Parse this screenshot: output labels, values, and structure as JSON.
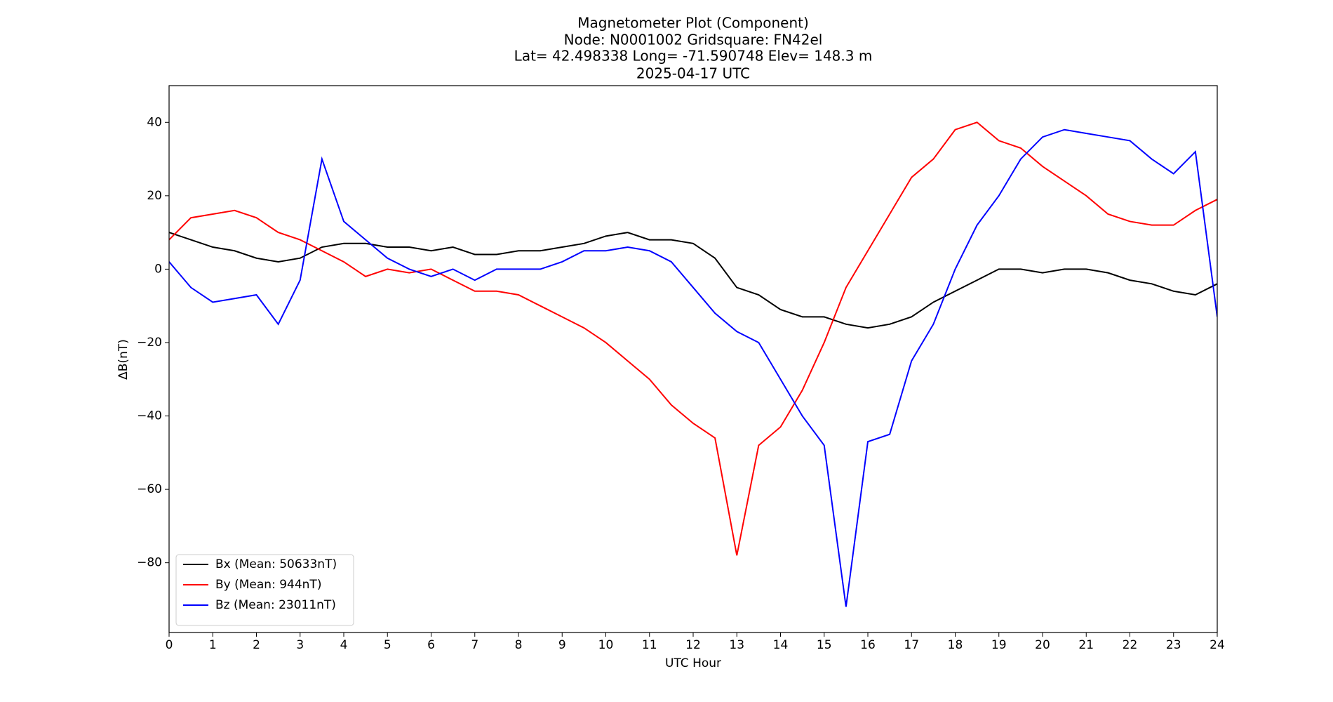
{
  "chart_data": {
    "type": "line",
    "title": [
      "Magnetometer Plot (Component)",
      "Node:  N0001002     Gridsquare:  FN42el",
      "Lat= 42.498338    Long= -71.590748    Elev= 148.3 m",
      "2025-04-17  UTC"
    ],
    "x_label": "UTC Hour",
    "y_label": "ΔB(nT)",
    "x": [
      0,
      0.5,
      1,
      1.5,
      2,
      2.5,
      3,
      3.5,
      4,
      4.5,
      5,
      5.5,
      6,
      6.5,
      7,
      7.5,
      8,
      8.5,
      9,
      9.5,
      10,
      10.5,
      11,
      11.5,
      12,
      12.5,
      13,
      13.5,
      14,
      14.5,
      15,
      15.5,
      16,
      16.5,
      17,
      17.5,
      18,
      18.5,
      19,
      19.5,
      20,
      20.5,
      21,
      21.5,
      22,
      22.5,
      23,
      23.5,
      24
    ],
    "series": [
      {
        "name": "Bx (Mean: 50633nT)",
        "color": "#000000",
        "values": [
          10,
          8,
          6,
          5,
          3,
          2,
          3,
          6,
          7,
          7,
          6,
          6,
          5,
          6,
          4,
          4,
          5,
          5,
          6,
          7,
          9,
          10,
          8,
          8,
          7,
          3,
          -5,
          -7,
          -11,
          -13,
          -13,
          -15,
          -16,
          -15,
          -13,
          -9,
          -6,
          -3,
          0,
          0,
          -1,
          0,
          0,
          -1,
          -3,
          -4,
          -6,
          -7,
          -4
        ]
      },
      {
        "name": "By (Mean: 944nT)",
        "color": "#ff0000",
        "values": [
          8,
          14,
          15,
          16,
          14,
          10,
          8,
          5,
          2,
          -2,
          0,
          -1,
          0,
          -3,
          -6,
          -6,
          -7,
          -10,
          -13,
          -16,
          -20,
          -25,
          -30,
          -37,
          -42,
          -46,
          -78,
          -48,
          -43,
          -33,
          -20,
          -5,
          5,
          15,
          25,
          30,
          38,
          40,
          35,
          33,
          28,
          24,
          20,
          15,
          13,
          12,
          12,
          16,
          19
        ]
      },
      {
        "name": "Bz (Mean: 23011nT)",
        "color": "#0000ff",
        "values": [
          2,
          -5,
          -9,
          -8,
          -7,
          -15,
          -3,
          30,
          13,
          8,
          3,
          0,
          -2,
          0,
          -3,
          0,
          0,
          0,
          2,
          5,
          5,
          6,
          5,
          2,
          -5,
          -12,
          -17,
          -20,
          -30,
          -40,
          -48,
          -92,
          -47,
          -45,
          -25,
          -15,
          0,
          12,
          20,
          30,
          36,
          38,
          37,
          36,
          35,
          30,
          26,
          32,
          -13
        ]
      }
    ],
    "xlim": [
      0,
      24
    ],
    "xticks": [
      0,
      1,
      2,
      3,
      4,
      5,
      6,
      7,
      8,
      9,
      10,
      11,
      12,
      13,
      14,
      15,
      16,
      17,
      18,
      19,
      20,
      21,
      22,
      23,
      24
    ],
    "ylim": [
      -99,
      50
    ],
    "yticks": [
      {
        "value": -80,
        "label": "−80"
      },
      {
        "value": -60,
        "label": "−60"
      },
      {
        "value": -40,
        "label": "−40"
      },
      {
        "value": -20,
        "label": "−20"
      },
      0,
      20,
      40
    ],
    "legend": "lower left",
    "grid": false
  }
}
